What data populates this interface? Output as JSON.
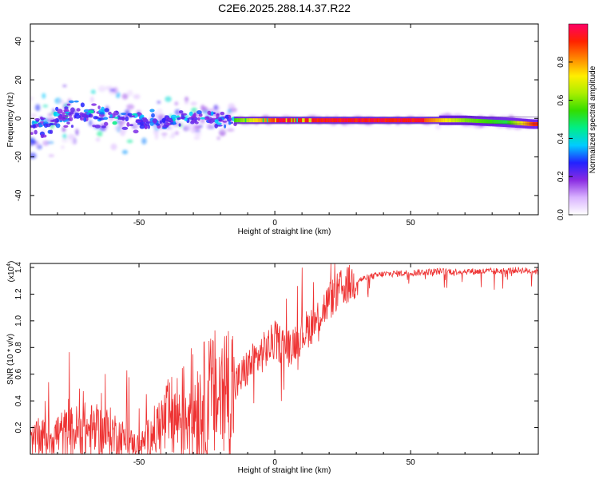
{
  "title": "C2E6.2025.288.14.37.R22",
  "colors": {
    "signal": "#ee3333",
    "axis": "#000000"
  },
  "chart_data": [
    {
      "type": "heatmap",
      "name": "spectrogram",
      "xlabel": "Height of straight line (km)",
      "ylabel": "Frequency (Hz)",
      "xlim": [
        -90,
        97
      ],
      "ylim": [
        -50,
        49
      ],
      "xticks": [
        -50,
        0,
        50
      ],
      "yticks": [
        -40,
        -20,
        0,
        20,
        40
      ],
      "colorbar": {
        "label": "Normalized spectral amplitude",
        "range": [
          0,
          1
        ],
        "ticks": [
          "0.0",
          "0.2",
          "0.4",
          "0.6",
          "0.8"
        ],
        "colormap": [
          "#ffffff",
          "#d9b3ff",
          "#8a2be2",
          "#2222ff",
          "#00ccff",
          "#00ee88",
          "#33dd00",
          "#aaee00",
          "#ffee00",
          "#ff8800",
          "#ff2200",
          "#ff0066"
        ]
      },
      "trace": [
        {
          "x": -85,
          "f": -4,
          "amp": 0.3
        },
        {
          "x": -75,
          "f": 2,
          "amp": 0.35
        },
        {
          "x": -65,
          "f": 1,
          "amp": 0.35
        },
        {
          "x": -55,
          "f": 0,
          "amp": 0.3
        },
        {
          "x": -45,
          "f": -2,
          "amp": 0.35
        },
        {
          "x": -35,
          "f": 0,
          "amp": 0.4
        },
        {
          "x": -25,
          "f": 0,
          "amp": 0.45
        },
        {
          "x": -15,
          "f": -1,
          "amp": 0.55
        },
        {
          "x": 0,
          "f": -1,
          "amp": 0.9
        },
        {
          "x": 25,
          "f": -1,
          "amp": 0.95
        },
        {
          "x": 50,
          "f": -1,
          "amp": 0.95
        },
        {
          "x": 70,
          "f": -1,
          "amp": 0.6
        },
        {
          "x": 85,
          "f": -2,
          "amp": 0.5
        },
        {
          "x": 95,
          "f": -3,
          "amp": 0.9
        }
      ]
    },
    {
      "type": "line",
      "name": "snr",
      "xlabel": "Height of straight line (km)",
      "ylabel": "SNR (10 * v/v)",
      "exponent_label": "(x10",
      "exponent_power": "4",
      "exponent_close": ")",
      "xlim": [
        -90,
        97
      ],
      "ylim": [
        0,
        1.43
      ],
      "xticks": [
        -50,
        0,
        50
      ],
      "yticks": [
        "0.2",
        "0.4",
        "0.6",
        "0.8",
        "1.0",
        "1.2",
        "1.4"
      ],
      "series": [
        {
          "name": "SNR",
          "x": [
            -90,
            -80,
            -70,
            -60,
            -50,
            -40,
            -35,
            -30,
            -25,
            -20,
            -15,
            -10,
            -5,
            0,
            5,
            10,
            15,
            20,
            25,
            30,
            35,
            40,
            50,
            60,
            70,
            80,
            90,
            97
          ],
          "y": [
            0.1,
            0.15,
            0.18,
            0.16,
            0.06,
            0.25,
            0.3,
            0.35,
            0.4,
            0.45,
            0.5,
            0.65,
            0.75,
            0.85,
            0.8,
            0.9,
            1.0,
            1.15,
            1.25,
            1.3,
            1.33,
            1.35,
            1.36,
            1.37,
            1.37,
            1.37,
            1.38,
            1.37
          ]
        }
      ]
    }
  ]
}
